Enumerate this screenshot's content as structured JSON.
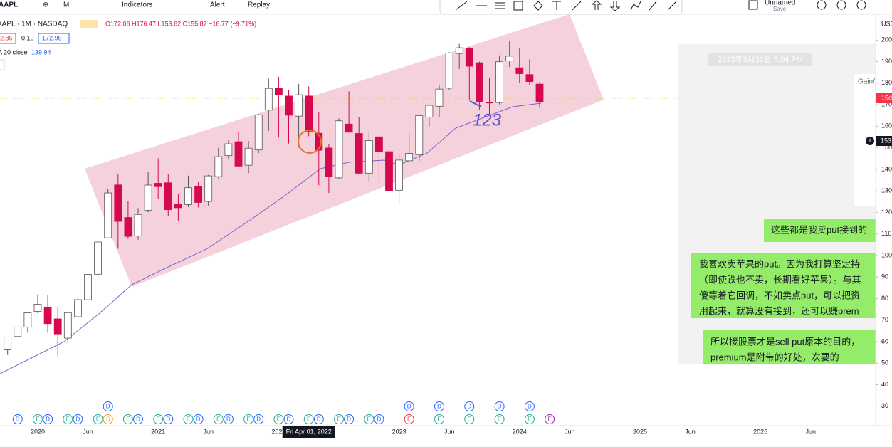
{
  "toolbar": {
    "symbol": "AAPL",
    "interval": "M",
    "indicators": "Indicators",
    "alert": "Alert",
    "replay": "Replay",
    "layout_name": "Unnamed",
    "save": "Save"
  },
  "legend": {
    "title": "AAPL · 1M · NASDAQ",
    "ohlc": "O172.06 H176.47 L153.62 C155.87 −16.77 (−9.71%)",
    "bid": "2.86",
    "spread": "0.10",
    "ask": "172.96",
    "ma_label": "A 20 close",
    "ma_value": "139.94"
  },
  "chart_data": {
    "type": "candlestick",
    "currency": "USD",
    "x": [
      "2019-10",
      "2019-11",
      "2019-12",
      "2020-01",
      "2020-02",
      "2020-03",
      "2020-04",
      "2020-05",
      "2020-06",
      "2020-07",
      "2020-08",
      "2020-09",
      "2020-10",
      "2020-11",
      "2020-12",
      "2021-01",
      "2021-02",
      "2021-03",
      "2021-04",
      "2021-05",
      "2021-06",
      "2021-07",
      "2021-08",
      "2021-09",
      "2021-10",
      "2021-11",
      "2021-12",
      "2022-01",
      "2022-02",
      "2022-03",
      "2022-04",
      "2022-05",
      "2022-06",
      "2022-07",
      "2022-08",
      "2022-09",
      "2022-10",
      "2022-11",
      "2022-12",
      "2023-01",
      "2023-02",
      "2023-03",
      "2023-04",
      "2023-05",
      "2023-06",
      "2023-07",
      "2023-08",
      "2023-09",
      "2023-10",
      "2023-11",
      "2023-12",
      "2024-01",
      "2024-02",
      "2024-03"
    ],
    "open": [
      56.18,
      62.38,
      66.82,
      74.06,
      76.07,
      70.57,
      61.63,
      71.56,
      79.44,
      91.28,
      108.2,
      132.76,
      117.64,
      109.11,
      121.01,
      133.52,
      133.75,
      123.75,
      123.66,
      132.04,
      125.08,
      136.6,
      146.36,
      152.83,
      141.9,
      148.99,
      167.48,
      177.83,
      174.01,
      164.7,
      174.03,
      156.71,
      149.9,
      136.04,
      161.01,
      156.64,
      138.21,
      155.08,
      148.21,
      130.28,
      143.97,
      146.83,
      164.27,
      169.28,
      177.7,
      193.78,
      196.24,
      189.49,
      171.22,
      171.0,
      190.33,
      187.15,
      183.99,
      179.55
    ],
    "high": [
      62.31,
      66.9,
      73.49,
      81.96,
      81.81,
      76.0,
      73.63,
      81.06,
      93.1,
      106.42,
      131.0,
      137.98,
      125.39,
      121.99,
      138.79,
      145.09,
      137.88,
      128.72,
      137.07,
      134.07,
      137.41,
      150.0,
      153.49,
      157.26,
      153.17,
      165.7,
      182.13,
      182.94,
      176.65,
      179.61,
      178.49,
      166.48,
      151.74,
      163.63,
      176.15,
      164.26,
      157.5,
      155.45,
      150.92,
      147.23,
      157.38,
      165.0,
      169.85,
      179.35,
      194.48,
      198.23,
      196.73,
      189.98,
      182.34,
      192.93,
      199.62,
      196.38,
      191.05,
      180.53
    ],
    "low": [
      53.78,
      62.29,
      64.07,
      73.19,
      64.09,
      53.15,
      59.22,
      71.46,
      79.3,
      89.14,
      107.89,
      103.1,
      107.72,
      107.32,
      120.01,
      126.38,
      118.39,
      116.21,
      122.49,
      122.25,
      123.13,
      135.76,
      144.5,
      141.27,
      138.27,
      147.48,
      157.8,
      154.7,
      152.0,
      150.1,
      155.38,
      132.61,
      129.04,
      135.66,
      157.14,
      138.0,
      134.37,
      134.38,
      125.87,
      124.17,
      143.9,
      143.9,
      159.78,
      164.31,
      176.93,
      186.6,
      171.96,
      167.62,
      165.67,
      170.12,
      187.45,
      180.17,
      179.25,
      168.49
    ],
    "close": [
      62.19,
      66.81,
      73.41,
      77.38,
      68.34,
      63.57,
      73.45,
      79.49,
      91.2,
      106.26,
      129.04,
      115.81,
      108.86,
      119.05,
      132.69,
      131.96,
      121.26,
      122.15,
      131.46,
      124.61,
      136.96,
      145.86,
      151.83,
      141.5,
      149.8,
      165.3,
      177.57,
      174.78,
      165.12,
      174.61,
      157.65,
      148.84,
      136.72,
      162.51,
      157.22,
      138.2,
      153.34,
      148.03,
      129.93,
      144.29,
      147.41,
      164.9,
      169.68,
      177.25,
      193.97,
      196.45,
      187.87,
      171.21,
      170.77,
      189.95,
      192.53,
      184.4,
      180.75,
      171.48
    ],
    "up_color": "#ffffff",
    "down_color": "#d6094f",
    "ylim": [
      21,
      212
    ],
    "yticks": [
      30,
      40,
      50,
      60,
      70,
      80,
      90,
      100,
      110,
      120,
      130,
      140,
      150,
      160,
      170,
      180,
      190,
      200
    ],
    "xlabels": [
      {
        "x": "2020-01",
        "label": "2020"
      },
      {
        "x": "2020-06",
        "label": "Jun"
      },
      {
        "x": "2021-01",
        "label": "2021"
      },
      {
        "x": "2021-06",
        "label": "Jun"
      },
      {
        "x": "2022-01",
        "label": "2022"
      },
      {
        "x": "2023-01",
        "label": "2023"
      },
      {
        "x": "2023-06",
        "label": "Jun"
      },
      {
        "x": "2024-01",
        "label": "2024"
      },
      {
        "x": "2024-06",
        "label": "Jun"
      },
      {
        "x": "2025-01",
        "label": "2025"
      },
      {
        "x": "2025-06",
        "label": "Jun"
      },
      {
        "x": "2026-01",
        "label": "2026"
      },
      {
        "x": "2026-06",
        "label": "Jun"
      }
    ],
    "crosshair_label": "Fri Apr 01, 2022",
    "event_colors": {
      "E": "#22ab94",
      "D": "#2962ff",
      "S": "#ff9800"
    },
    "events": [
      {
        "x": "2019-11",
        "label": "D"
      },
      {
        "x": "2020-01",
        "label": "E"
      },
      {
        "x": "2020-02",
        "label": "D"
      },
      {
        "x": "2020-04",
        "label": "E"
      },
      {
        "x": "2020-05",
        "label": "D"
      },
      {
        "x": "2020-07",
        "label": "E"
      },
      {
        "x": "2020-08",
        "label": "S"
      },
      {
        "x": "2020-08",
        "label": "D"
      },
      {
        "x": "2020-10",
        "label": "E"
      },
      {
        "x": "2020-11",
        "label": "D"
      },
      {
        "x": "2021-01",
        "label": "E"
      },
      {
        "x": "2021-02",
        "label": "D"
      },
      {
        "x": "2021-04",
        "label": "E"
      },
      {
        "x": "2021-05",
        "label": "D"
      },
      {
        "x": "2021-07",
        "label": "E"
      },
      {
        "x": "2021-08",
        "label": "D"
      },
      {
        "x": "2021-10",
        "label": "E"
      },
      {
        "x": "2021-11",
        "label": "D"
      },
      {
        "x": "2022-01",
        "label": "E"
      },
      {
        "x": "2022-02",
        "label": "D"
      },
      {
        "x": "2022-04",
        "label": "E"
      },
      {
        "x": "2022-05",
        "label": "D"
      },
      {
        "x": "2022-07",
        "label": "E"
      },
      {
        "x": "2022-08",
        "label": "D"
      },
      {
        "x": "2022-10",
        "label": "E"
      },
      {
        "x": "2022-11",
        "label": "D"
      },
      {
        "x": "2023-02",
        "label": "E",
        "color": "#f23645"
      },
      {
        "x": "2023-02",
        "label": "D"
      },
      {
        "x": "2023-05",
        "label": "E"
      },
      {
        "x": "2023-05",
        "label": "D"
      },
      {
        "x": "2023-08",
        "label": "E"
      },
      {
        "x": "2023-08",
        "label": "D"
      },
      {
        "x": "2023-11",
        "label": "E"
      },
      {
        "x": "2023-11",
        "label": "D"
      },
      {
        "x": "2024-02",
        "label": "E"
      },
      {
        "x": "2024-02",
        "label": "D"
      },
      {
        "x": "2024-04",
        "label": "E",
        "color": "#9c27b0"
      }
    ],
    "annotation": "123"
  },
  "price_badges": {
    "current": "15d",
    "cursor": "153."
  },
  "chat": {
    "timestamp": "2023年3月31日 5:04 PM",
    "gain": "Gain/",
    "messages": [
      {
        "lines": [
          "这些都是我卖put接到的"
        ]
      },
      {
        "lines": [
          "我喜欢卖苹果的put。因为我打算坚定持",
          "（即使跌也不卖，长期看好苹果）。与其",
          "傻等着它回调，不如卖点put，可以把资",
          "用起来，就算没有接到，还可以赚prem"
        ]
      },
      {
        "lines": [
          "所以接股票才是sell put原本的目的，",
          "premium是附带的好处，次要的"
        ]
      }
    ]
  }
}
